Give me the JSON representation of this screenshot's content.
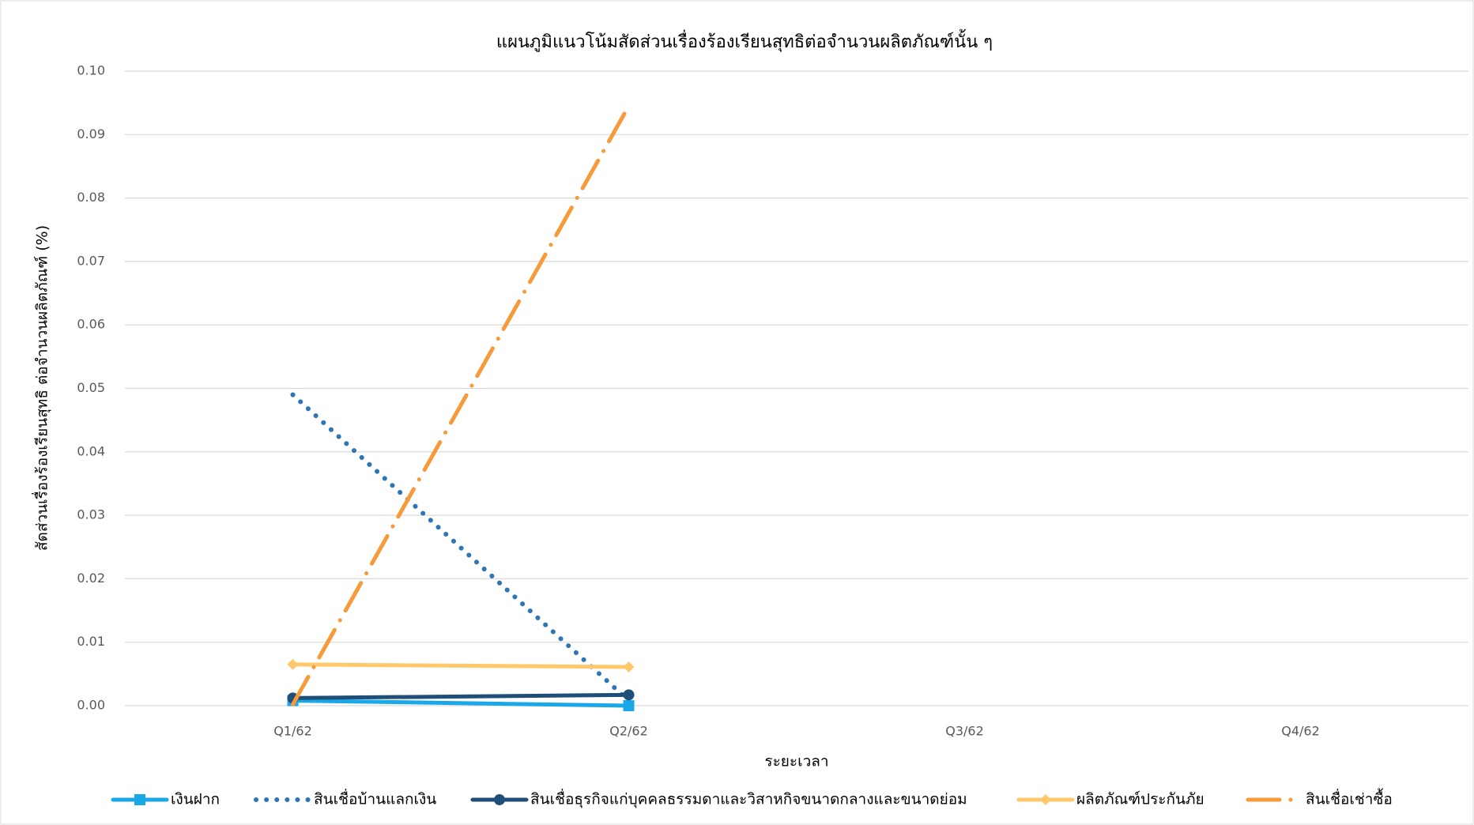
{
  "chart_data": {
    "type": "line",
    "title": "แผนภูมิแนวโน้มสัดส่วนเรื่องร้องเรียนสุทธิต่อจำนวนผลิตภัณฑ์นั้น ๆ",
    "x_label": "ระยะเวลา",
    "y_label": "สัดส่วนเรื่องร้องเรียนสุทธิ ต่อจำนวนผลิตภัณฑ์ (%)",
    "categories": [
      "Q1/62",
      "Q2/62",
      "Q3/62",
      "Q4/62"
    ],
    "series": [
      {
        "name": "เงินฝาก",
        "color": "#1aa8e8",
        "marker": "square",
        "line_style": "solid",
        "values": [
          0.0008,
          0.0,
          null,
          null
        ]
      },
      {
        "name": "สินเชื่อบ้านแลกเงิน",
        "color": "#2e75b6",
        "marker": "none",
        "line_style": "dot",
        "values": [
          0.049,
          0.0008,
          null,
          null
        ]
      },
      {
        "name": "สินเชื่อธุรกิจแก่บุคคลธรรมดาและวิสาหกิจขนาดกลางและขนาดย่อม",
        "color": "#1f4e79",
        "marker": "circle",
        "line_style": "solid",
        "values": [
          0.0012,
          0.0017,
          null,
          null
        ]
      },
      {
        "name": "ผลิตภัณฑ์ประกันภัย",
        "color": "#ffc96b",
        "marker": "diamond",
        "line_style": "solid",
        "values": [
          0.0065,
          0.0061,
          null,
          null
        ]
      },
      {
        "name": "สินเชื่อเช่าซื้อ",
        "color": "#f79a3a",
        "marker": "none",
        "line_style": "dashdot",
        "values": [
          0.0002,
          0.0945,
          null,
          null
        ]
      }
    ],
    "ylim": [
      0,
      0.1
    ],
    "yticks": [
      {
        "value": 0,
        "label": "0.00"
      },
      {
        "value": 0.01,
        "label": "0.01"
      },
      {
        "value": 0.02,
        "label": "0.02"
      },
      {
        "value": 0.03,
        "label": "0.03"
      },
      {
        "value": 0.04,
        "label": "0.04"
      },
      {
        "value": 0.05,
        "label": "0.05"
      },
      {
        "value": 0.06,
        "label": "0.06"
      },
      {
        "value": 0.07,
        "label": "0.07"
      },
      {
        "value": 0.08,
        "label": "0.08"
      },
      {
        "value": 0.09,
        "label": "0.09"
      },
      {
        "value": 0.1,
        "label": "0.10"
      }
    ],
    "grid": true,
    "legend": "bottom"
  }
}
